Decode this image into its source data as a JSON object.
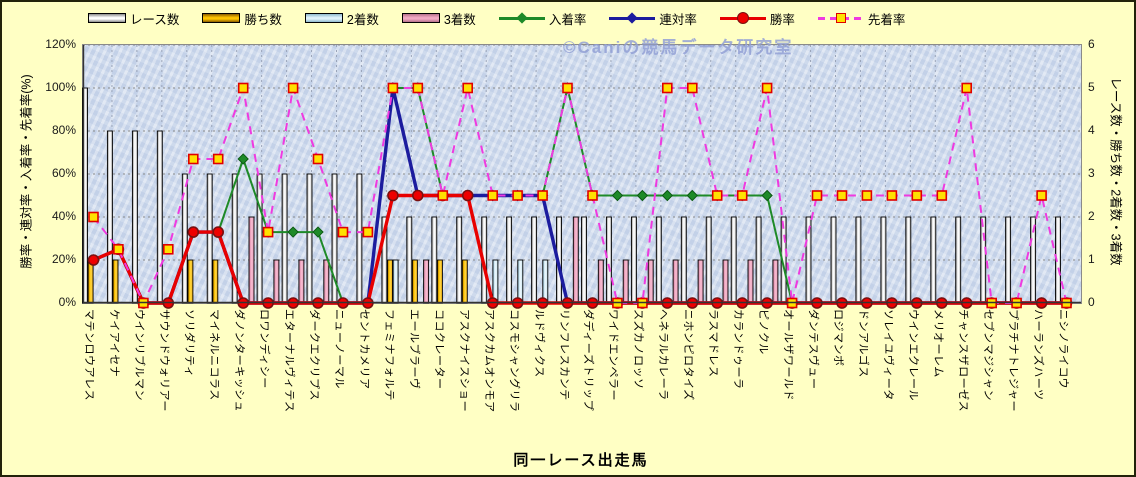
{
  "watermark": "©Caniの競馬データ研究室",
  "x_axis_title": "同一レース出走馬",
  "axis_left": {
    "label": "勝率・連対率・入着率・先着率(%)",
    "ticks": [
      "0%",
      "20%",
      "40%",
      "60%",
      "80%",
      "100%",
      "120%"
    ],
    "range": [
      0,
      120
    ]
  },
  "axis_right": {
    "label": "レース数・勝ち数・2着数・3着数",
    "ticks": [
      "0",
      "1",
      "2",
      "3",
      "4",
      "5",
      "6"
    ],
    "range": [
      0,
      6
    ]
  },
  "legend": [
    {
      "id": "races",
      "label": "レース数",
      "kind": "bar",
      "color": "#ffffff",
      "edge": "#8c8c8c"
    },
    {
      "id": "wins",
      "label": "勝ち数",
      "kind": "bar",
      "color": "#ffc400",
      "edge": "#8a5c00"
    },
    {
      "id": "seconds",
      "label": "2着数",
      "kind": "bar",
      "color": "#dff2fb",
      "edge": "#8fb9cd"
    },
    {
      "id": "thirds",
      "label": "3着数",
      "kind": "bar",
      "color": "#f2a9c4",
      "edge": "#b5718b"
    },
    {
      "id": "place_rate",
      "label": "入着率",
      "kind": "line",
      "color": "#1e8a28",
      "marker": "diamond",
      "marker_fill": "#1e8a28",
      "marker_stroke": "#0c5a14"
    },
    {
      "id": "quinella_rate",
      "label": "連対率",
      "kind": "line",
      "color": "#1c1c9e",
      "marker": "diamond",
      "marker_fill": "#1c1c9e",
      "marker_stroke": "#0a0a6a"
    },
    {
      "id": "win_rate",
      "label": "勝率",
      "kind": "line",
      "color": "#e80000",
      "marker": "circle",
      "marker_fill": "#ee0000",
      "marker_stroke": "#7a1010"
    },
    {
      "id": "finish_ahead_rate",
      "label": "先着率",
      "kind": "line",
      "color": "#ef3ae0",
      "dashed": true,
      "marker": "square",
      "marker_fill": "#ffe100",
      "marker_stroke": "#e00000"
    }
  ],
  "chart_data": {
    "type": "combo-bar-line",
    "grid": true,
    "left_axis_pct_max": 120,
    "right_axis_count_max": 6,
    "categories": [
      "マテンロウアレス",
      "ケイアイセナ",
      "ウインリブルマン",
      "サウンドウォリアー",
      "ソリダリティ",
      "マイネルニコラス",
      "ダノンターキッシュ",
      "ロワンディシー",
      "エターナルヴィテス",
      "ダークエクリプス",
      "ニューノーマル",
      "セントカメリア",
      "フェミナフォルテ",
      "エールブラーヴ",
      "ココクレーター",
      "アスクナイスショー",
      "アスクカムオンモア",
      "コスモシャングリラ",
      "ルドヴィクス",
      "リンフレスカンテ",
      "ダディーズトリップ",
      "ワイドエンペラー",
      "スズカノロッソ",
      "ヘネラルカレーラ",
      "ニホンピロタイズ",
      "ラスマドレス",
      "カランドゥーラ",
      "ピノクル",
      "オールザワールド",
      "ダンテスヴュー",
      "ロジマンボ",
      "ドンアルゴス",
      "ソレイユヴィータ",
      "ウインエクレール",
      "メリオーレム",
      "チャンスザローゼス",
      "セブンマジシャン",
      "プラチナトレジャー",
      "ハーランズハーツ",
      "ニシノライコウ"
    ],
    "series": [
      {
        "id": "races",
        "name": "レース数",
        "type": "bar",
        "axis": "right",
        "values": [
          5,
          4,
          4,
          4,
          3,
          3,
          3,
          3,
          3,
          3,
          3,
          3,
          2,
          2,
          2,
          2,
          2,
          2,
          2,
          2,
          2,
          2,
          2,
          2,
          2,
          2,
          2,
          2,
          2,
          2,
          2,
          2,
          2,
          2,
          2,
          2,
          2,
          2,
          2,
          2
        ]
      },
      {
        "id": "wins",
        "name": "勝ち数",
        "type": "bar",
        "axis": "right",
        "values": [
          1,
          1,
          0,
          0,
          1,
          1,
          0,
          0,
          0,
          0,
          0,
          0,
          1,
          1,
          1,
          1,
          0,
          0,
          0,
          0,
          0,
          0,
          0,
          0,
          0,
          0,
          0,
          0,
          0,
          0,
          0,
          0,
          0,
          0,
          0,
          0,
          0,
          0,
          0,
          0
        ]
      },
      {
        "id": "seconds",
        "name": "2着数",
        "type": "bar",
        "axis": "right",
        "values": [
          0,
          0,
          0,
          0,
          0,
          0,
          0,
          0,
          0,
          0,
          0,
          0,
          1,
          0,
          0,
          0,
          1,
          1,
          1,
          0,
          0,
          0,
          0,
          0,
          0,
          0,
          0,
          0,
          0,
          0,
          0,
          0,
          0,
          0,
          0,
          0,
          0,
          0,
          0,
          0
        ]
      },
      {
        "id": "thirds",
        "name": "3着数",
        "type": "bar",
        "axis": "right",
        "values": [
          0,
          0,
          0,
          0,
          0,
          0,
          2,
          1,
          1,
          1,
          0,
          0,
          0,
          1,
          0,
          0,
          0,
          0,
          0,
          2,
          1,
          1,
          1,
          1,
          1,
          1,
          1,
          1,
          0,
          0,
          0,
          0,
          0,
          0,
          0,
          0,
          0,
          0,
          0,
          0
        ]
      },
      {
        "id": "place_rate",
        "name": "入着率",
        "type": "line",
        "axis": "left",
        "marker": "diamond",
        "values": [
          20,
          25,
          0,
          0,
          33,
          33,
          67,
          33,
          33,
          33,
          0,
          0,
          100,
          100,
          50,
          50,
          50,
          50,
          50,
          100,
          50,
          50,
          50,
          50,
          50,
          50,
          50,
          50,
          0,
          0,
          0,
          0,
          0,
          0,
          0,
          0,
          0,
          0,
          0,
          0
        ]
      },
      {
        "id": "quinella_rate",
        "name": "連対率",
        "type": "line",
        "axis": "left",
        "marker": "diamond",
        "values": [
          20,
          25,
          0,
          0,
          33,
          33,
          0,
          0,
          0,
          0,
          0,
          0,
          100,
          50,
          50,
          50,
          50,
          50,
          50,
          0,
          0,
          0,
          0,
          0,
          0,
          0,
          0,
          0,
          0,
          0,
          0,
          0,
          0,
          0,
          0,
          0,
          0,
          0,
          0,
          0
        ]
      },
      {
        "id": "win_rate",
        "name": "勝率",
        "type": "line",
        "axis": "left",
        "marker": "circle",
        "values": [
          20,
          25,
          0,
          0,
          33,
          33,
          0,
          0,
          0,
          0,
          0,
          0,
          50,
          50,
          50,
          50,
          0,
          0,
          0,
          0,
          0,
          0,
          0,
          0,
          0,
          0,
          0,
          0,
          0,
          0,
          0,
          0,
          0,
          0,
          0,
          0,
          0,
          0,
          0,
          0
        ]
      },
      {
        "id": "finish_ahead_rate",
        "name": "先着率",
        "type": "line",
        "axis": "left",
        "dashed": true,
        "marker": "square",
        "values": [
          40,
          25,
          0,
          25,
          67,
          67,
          100,
          33,
          100,
          67,
          33,
          33,
          100,
          100,
          50,
          100,
          50,
          50,
          50,
          100,
          50,
          0,
          0,
          100,
          100,
          50,
          50,
          100,
          0,
          50,
          50,
          50,
          50,
          50,
          50,
          100,
          0,
          0,
          50,
          0
        ]
      }
    ]
  }
}
